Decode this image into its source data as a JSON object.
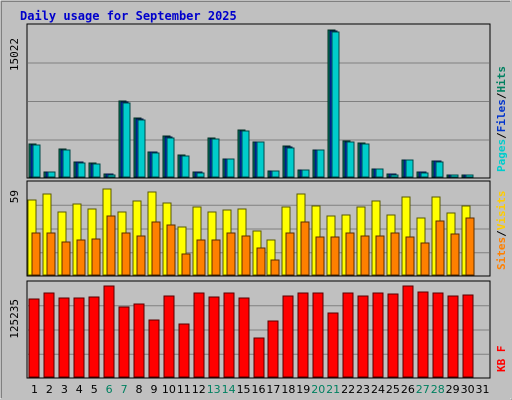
{
  "chart_data": {
    "type": "bar",
    "title": "Daily usage for September 2025",
    "days": [
      "1",
      "2",
      "3",
      "4",
      "5",
      "6",
      "7",
      "8",
      "9",
      "10",
      "11",
      "12",
      "13",
      "14",
      "15",
      "16",
      "17",
      "18",
      "19",
      "20",
      "21",
      "22",
      "23",
      "24",
      "25",
      "26",
      "27",
      "28",
      "29",
      "30",
      "31"
    ],
    "weekend_days": [
      "6",
      "7",
      "13",
      "14",
      "20",
      "21",
      "27",
      "28"
    ],
    "panels": [
      {
        "name": "pages-files-hits",
        "ymax_label": "15022",
        "ymax": 15022,
        "legend": [
          {
            "text": "Pages",
            "color": "#00cccc"
          },
          {
            "text": "/",
            "color": "#000000"
          },
          {
            "text": "Files",
            "color": "#0033cc"
          },
          {
            "text": "/",
            "color": "#000000"
          },
          {
            "text": "Hits",
            "color": "#008060"
          }
        ],
        "series": [
          {
            "name": "Hits",
            "color": "#008060",
            "values": [
              3300,
              500,
              2800,
              1500,
              1400,
              300,
              7700,
              6000,
              2500,
              4200,
              2200,
              500,
              4000,
              1800,
              4800,
              3600,
              600,
              3100,
              700,
              2700,
              14900,
              3700,
              3500,
              800,
              300,
              1700,
              500,
              1600,
              200,
              200,
              null
            ]
          },
          {
            "name": "Files",
            "color": "#0033cc",
            "values": [
              3200,
              500,
              2700,
              1500,
              1300,
              300,
              7600,
              5900,
              2500,
              4100,
              2100,
              500,
              3900,
              1800,
              4700,
              3600,
              600,
              3000,
              700,
              2700,
              14800,
              3600,
              3400,
              800,
              300,
              1700,
              500,
              1600,
              200,
              200,
              null
            ]
          },
          {
            "name": "Pages",
            "color": "#00cccc",
            "values": [
              3200,
              500,
              2700,
              1400,
              1300,
              200,
              7500,
              5800,
              2400,
              4000,
              2100,
              400,
              3900,
              1800,
              4700,
              3600,
              600,
              2900,
              700,
              2700,
              14700,
              3600,
              3400,
              800,
              200,
              1700,
              400,
              1500,
              200,
              200,
              null
            ]
          }
        ]
      },
      {
        "name": "sites-visits",
        "ymax_label": "59",
        "ymax": 59,
        "legend": [
          {
            "text": "Sites",
            "color": "#ff8000"
          },
          {
            "text": "/",
            "color": "#000000"
          },
          {
            "text": "Visits",
            "color": "#ffcc00"
          }
        ],
        "series": [
          {
            "name": "Visits",
            "color": "#ffff00",
            "values": [
              50,
              54,
              42,
              47,
              44,
              57,
              42,
              49,
              55,
              48,
              32,
              45,
              42,
              43,
              44,
              29,
              23,
              45,
              54,
              46,
              39,
              40,
              45,
              49,
              40,
              52,
              38,
              52,
              41,
              46,
              null
            ]
          },
          {
            "name": "Sites",
            "color": "#ff8000",
            "values": [
              28,
              28,
              22,
              23,
              24,
              39,
              28,
              26,
              35,
              33,
              14,
              23,
              23,
              28,
              26,
              18,
              10,
              28,
              35,
              25,
              25,
              28,
              26,
              26,
              28,
              25,
              21,
              36,
              27,
              38,
              null
            ]
          }
        ]
      },
      {
        "name": "kbytes",
        "ymax_label": "125235",
        "ymax": 125235,
        "legend": [
          {
            "text": "KB F",
            "color": "#ff0000"
          }
        ],
        "series": [
          {
            "name": "KB F",
            "color": "#ff0000",
            "values": [
              107000,
              115000,
              109000,
              109000,
              110000,
              125000,
              97000,
              101000,
              78000,
              112000,
              73000,
              116000,
              110000,
              116000,
              109000,
              53000,
              77000,
              111000,
              115000,
              116000,
              88000,
              116000,
              111000,
              115000,
              114000,
              125000,
              117000,
              115000,
              112000,
              113000,
              null
            ]
          }
        ]
      }
    ]
  }
}
